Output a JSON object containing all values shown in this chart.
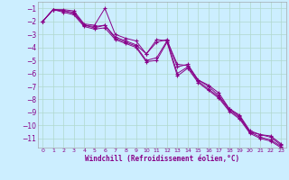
{
  "xlabel": "Windchill (Refroidissement éolien,°C)",
  "background_color": "#cceeff",
  "grid_color": "#b0d8cc",
  "line_color": "#880088",
  "xlim": [
    -0.5,
    23.5
  ],
  "ylim": [
    -11.7,
    -0.5
  ],
  "yticks": [
    -11,
    -10,
    -9,
    -8,
    -7,
    -6,
    -5,
    -4,
    -3,
    -2,
    -1
  ],
  "xticks": [
    0,
    1,
    2,
    3,
    4,
    5,
    6,
    7,
    8,
    9,
    10,
    11,
    12,
    13,
    14,
    15,
    16,
    17,
    18,
    19,
    20,
    21,
    22,
    23
  ],
  "series": [
    [
      -2.0,
      -1.1,
      -1.1,
      -1.2,
      -2.2,
      -2.3,
      -1.0,
      -3.0,
      -3.3,
      -3.5,
      -4.5,
      -3.4,
      -3.5,
      -5.3,
      -5.4,
      -6.5,
      -6.9,
      -7.5,
      -8.7,
      -9.2,
      -10.4,
      -10.7,
      -10.8,
      -11.4
    ],
    [
      -2.0,
      -1.1,
      -1.2,
      -1.3,
      -2.3,
      -2.4,
      -2.3,
      -3.2,
      -3.5,
      -3.8,
      -4.5,
      -3.6,
      -3.4,
      -5.5,
      -5.3,
      -6.5,
      -7.0,
      -7.7,
      -8.7,
      -9.3,
      -10.5,
      -10.7,
      -10.9,
      -11.5
    ],
    [
      -2.0,
      -1.1,
      -1.2,
      -1.4,
      -2.3,
      -2.5,
      -2.3,
      -3.3,
      -3.6,
      -3.9,
      -5.0,
      -4.8,
      -3.5,
      -6.0,
      -5.5,
      -6.6,
      -7.2,
      -7.8,
      -8.8,
      -9.4,
      -10.5,
      -10.9,
      -11.1,
      -11.6
    ],
    [
      -2.0,
      -1.1,
      -1.3,
      -1.5,
      -2.4,
      -2.6,
      -2.5,
      -3.4,
      -3.7,
      -4.0,
      -5.1,
      -5.0,
      -3.6,
      -6.2,
      -5.6,
      -6.7,
      -7.3,
      -7.9,
      -8.9,
      -9.5,
      -10.6,
      -11.0,
      -11.2,
      -11.7
    ]
  ]
}
